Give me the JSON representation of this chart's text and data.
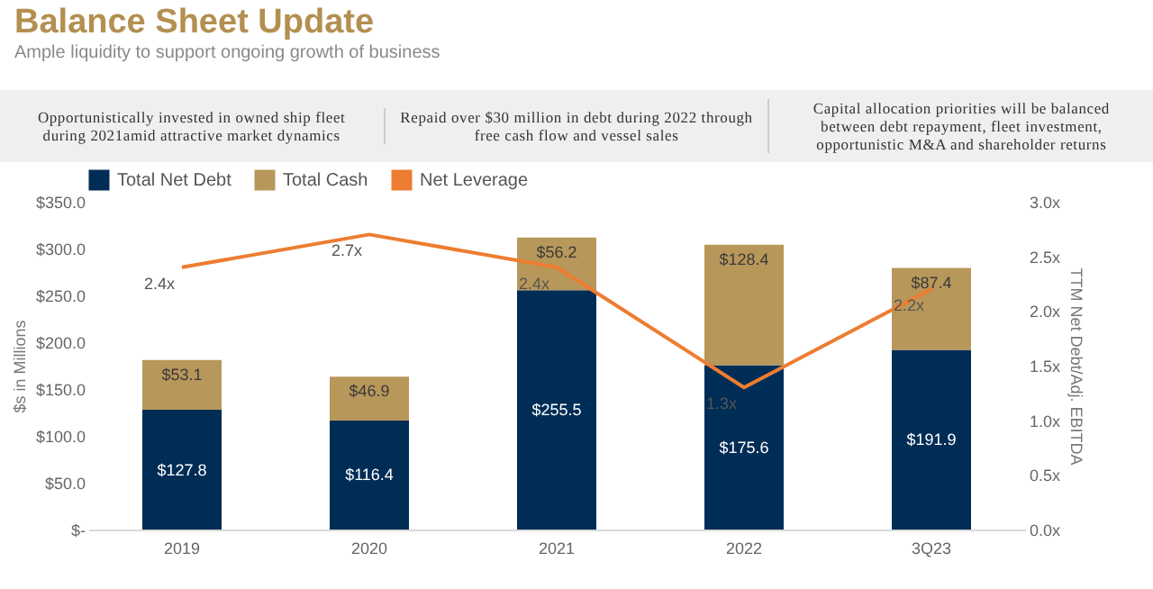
{
  "chart_data": {
    "type": "bar",
    "title": "Balance Sheet Update",
    "subtitle": "Ample liquidity to support ongoing growth of business",
    "annotations": [
      "Opportunistically invested in owned ship fleet during 2021amid attractive market dynamics",
      "Repaid over $30 million in debt during 2022 through free cash flow and vessel sales",
      "Capital allocation priorities will be balanced between debt repayment, fleet investment, opportunistic M&A and shareholder returns"
    ],
    "categories": [
      "2019",
      "2020",
      "2021",
      "2022",
      "3Q23"
    ],
    "stacked": true,
    "legend": "top",
    "ylabel": "$s in Millions",
    "y2label": "TTM Net Debt/Adj. EBITDA",
    "ylim": [
      0,
      350
    ],
    "yticks": [
      {
        "value": 0,
        "label": "$-"
      },
      {
        "value": 50,
        "label": "$50.0"
      },
      {
        "value": 100,
        "label": "$100.0"
      },
      {
        "value": 150,
        "label": "$150.0"
      },
      {
        "value": 200,
        "label": "$200.0"
      },
      {
        "value": 250,
        "label": "$250.0"
      },
      {
        "value": 300,
        "label": "$300.0"
      },
      {
        "value": 350,
        "label": "$350.0"
      }
    ],
    "y2lim": [
      0,
      3
    ],
    "y2ticks": [
      {
        "value": 0,
        "label": "0.0x"
      },
      {
        "value": 0.5,
        "label": "0.5x"
      },
      {
        "value": 1,
        "label": "1.0x"
      },
      {
        "value": 1.5,
        "label": "1.5x"
      },
      {
        "value": 2,
        "label": "2.0x"
      },
      {
        "value": 2.5,
        "label": "2.5x"
      },
      {
        "value": 3,
        "label": "3.0x"
      }
    ],
    "series": [
      {
        "name": "Total Net Debt",
        "color": "#002d56",
        "values": [
          127.8,
          116.4,
          255.5,
          175.6,
          191.9
        ],
        "value_labels": [
          "$127.8",
          "$116.4",
          "$255.5",
          "$175.6",
          "$191.9"
        ]
      },
      {
        "name": "Total Cash",
        "color": "#b8975a",
        "values": [
          53.1,
          46.9,
          56.2,
          128.4,
          87.4
        ],
        "value_labels": [
          "$53.1",
          "$46.9",
          "$56.2",
          "$128.4",
          "$87.4"
        ]
      },
      {
        "name": "Net Leverage",
        "type": "line",
        "axis": "y2",
        "color": "#ed7d31",
        "values": [
          2.4,
          2.7,
          2.4,
          1.3,
          2.2
        ],
        "value_labels": [
          "2.4x",
          "2.7x",
          "2.4x",
          "1.3x",
          "2.2x"
        ]
      }
    ]
  }
}
